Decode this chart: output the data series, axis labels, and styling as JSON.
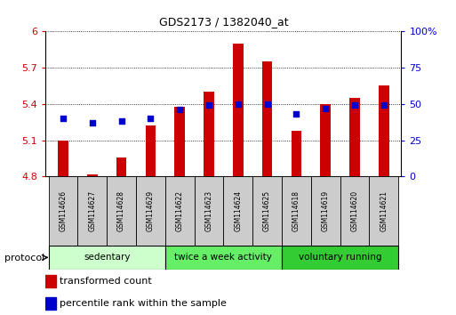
{
  "title": "GDS2173 / 1382040_at",
  "categories": [
    "GSM114626",
    "GSM114627",
    "GSM114628",
    "GSM114629",
    "GSM114622",
    "GSM114623",
    "GSM114624",
    "GSM114625",
    "GSM114618",
    "GSM114619",
    "GSM114620",
    "GSM114621"
  ],
  "bar_values": [
    5.1,
    4.82,
    4.96,
    5.22,
    5.38,
    5.5,
    5.9,
    5.75,
    5.18,
    5.4,
    5.45,
    5.55
  ],
  "percentile_values": [
    40,
    37,
    38,
    40,
    46,
    49,
    50,
    50,
    43,
    47,
    49,
    49
  ],
  "bar_color": "#cc0000",
  "percentile_color": "#0000cc",
  "ymin": 4.8,
  "ymax": 6.0,
  "y_ticks": [
    4.8,
    5.1,
    5.4,
    5.7,
    6.0
  ],
  "y_tick_labels": [
    "4.8",
    "5.1",
    "5.4",
    "5.7",
    "6"
  ],
  "y2min": 0,
  "y2max": 100,
  "y2_ticks": [
    0,
    25,
    50,
    75,
    100
  ],
  "y2_tick_labels": [
    "0",
    "25",
    "50",
    "75",
    "100%"
  ],
  "groups": [
    {
      "label": "sedentary",
      "start": 0,
      "end": 4,
      "color": "#ccffcc"
    },
    {
      "label": "twice a week activity",
      "start": 4,
      "end": 8,
      "color": "#66ee66"
    },
    {
      "label": "voluntary running",
      "start": 8,
      "end": 12,
      "color": "#33cc33"
    }
  ],
  "legend_bar_label": "transformed count",
  "legend_pct_label": "percentile rank within the sample",
  "protocol_label": "protocol",
  "bar_color_red": "#cc0000",
  "pct_color_blue": "#0000cc",
  "grid_color": "#888888",
  "sample_box_color": "#cccccc",
  "bg_color": "#ffffff"
}
